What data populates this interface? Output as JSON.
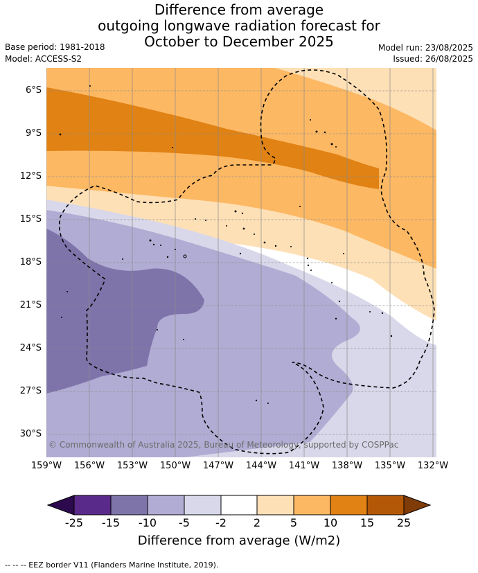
{
  "header": {
    "title_line1": "Difference from average",
    "title_line2": "outgoing longwave radiation forecast for",
    "title_line3": "October to December 2025",
    "base_period": "Base period: 1981-2018",
    "model": "Model: ACCESS-S2",
    "model_run": "Model run: 23/08/2025",
    "issued": "Issued: 26/08/2025"
  },
  "map": {
    "lat_labels": [
      "6°S",
      "9°S",
      "12°S",
      "15°S",
      "18°S",
      "21°S",
      "24°S",
      "27°S",
      "30°S"
    ],
    "lon_labels": [
      "159°W",
      "156°W",
      "153°W",
      "150°W",
      "147°W",
      "144°W",
      "141°W",
      "138°W",
      "135°W",
      "132°W"
    ],
    "copyright": "© Commonwealth of Australia 2025, Bureau of Meteorology, supported by COSPPac"
  },
  "colorbar": {
    "tick_labels": [
      "-25",
      "-15",
      "-10",
      "-5",
      "-2",
      "2",
      "5",
      "10",
      "15",
      "25"
    ],
    "label": "Difference from average (W/m2)",
    "colors": {
      "under": "#2d0a4e",
      "b1": "#5a2a8a",
      "b2": "#7f74aa",
      "b3": "#b0acd3",
      "b4": "#d8d8ea",
      "b5": "#ffffff",
      "b6": "#fee0b6",
      "b7": "#fdb863",
      "b8": "#e08214",
      "b9": "#b35806",
      "over": "#7f3b08"
    }
  },
  "footer": {
    "legend_text": "--  --  -- EEZ border V11 (Flanders Marine Institute, 2019)."
  }
}
